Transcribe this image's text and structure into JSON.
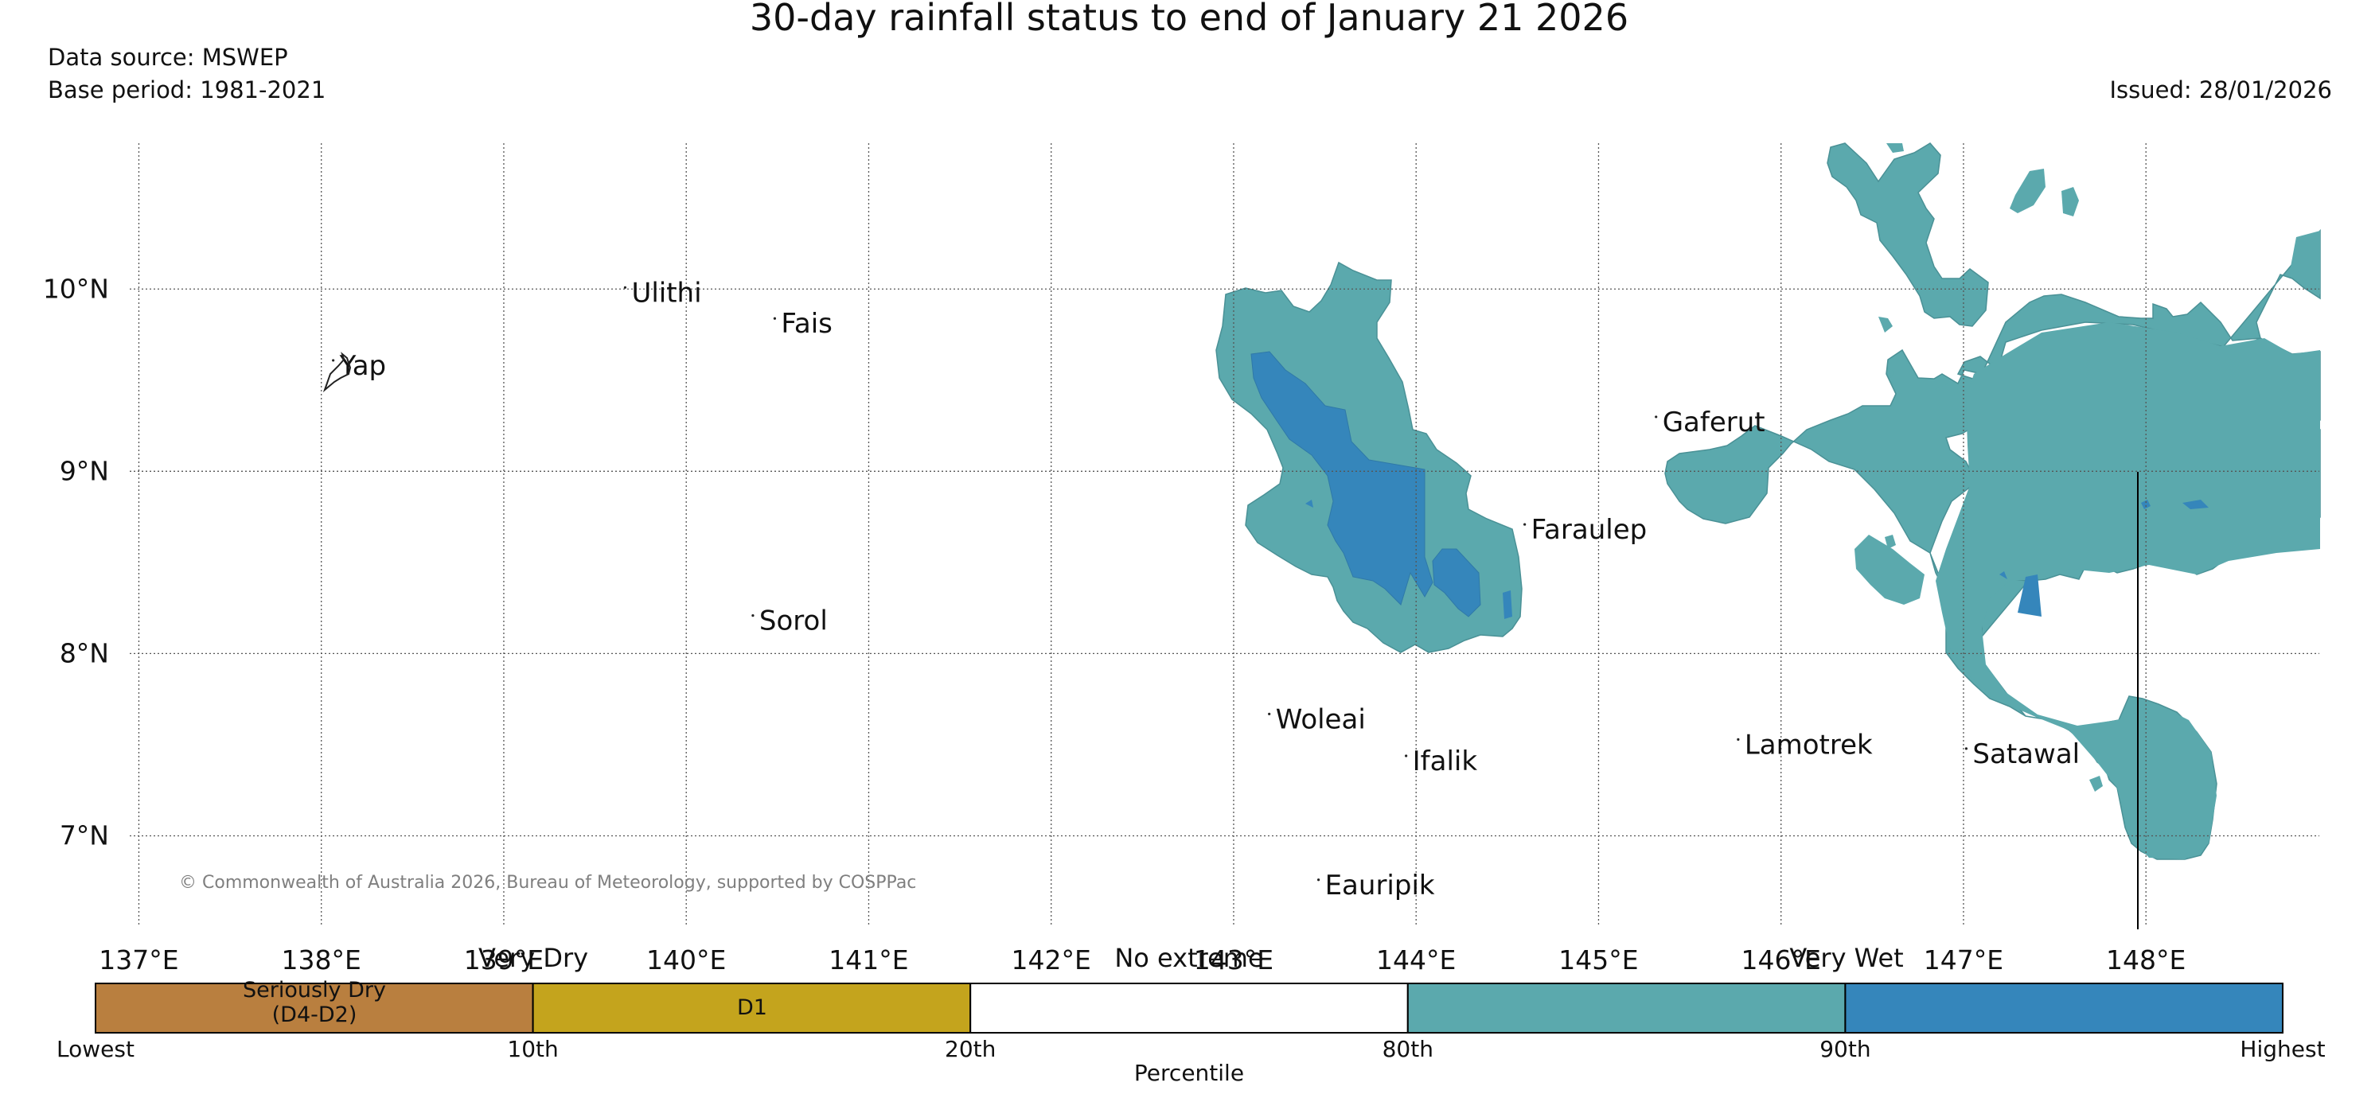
{
  "title": "30-day rainfall status to end of January 21 2026",
  "data_source": "Data source: MSWEP",
  "base_period": "Base period: 1981-2021",
  "issued": "Issued: 28/01/2026",
  "copyright": "© Commonwealth of Australia 2026, Bureau of Meteorology, supported by COSPPac",
  "map": {
    "lon_range": [
      136.95,
      148.95
    ],
    "lat_range": [
      6.5,
      10.8
    ],
    "lon_ticks": [
      {
        "value": 137,
        "label": "137°E"
      },
      {
        "value": 138,
        "label": "138°E"
      },
      {
        "value": 139,
        "label": "139°E"
      },
      {
        "value": 140,
        "label": "140°E"
      },
      {
        "value": 141,
        "label": "141°E"
      },
      {
        "value": 142,
        "label": "142°E"
      },
      {
        "value": 143,
        "label": "143°E"
      },
      {
        "value": 144,
        "label": "144°E"
      },
      {
        "value": 145,
        "label": "145°E"
      },
      {
        "value": 146,
        "label": "146°E"
      },
      {
        "value": 147,
        "label": "147°E"
      },
      {
        "value": 148,
        "label": "148°E"
      }
    ],
    "lat_ticks": [
      {
        "value": 10,
        "label": "10°N"
      },
      {
        "value": 9,
        "label": "9°N"
      },
      {
        "value": 8,
        "label": "8°N"
      },
      {
        "value": 7,
        "label": "7°N"
      }
    ],
    "islands": [
      {
        "name": "Yap",
        "lon": 138.1,
        "lat": 9.53
      },
      {
        "name": "Ulithi",
        "lon": 139.7,
        "lat": 9.93
      },
      {
        "name": "Fais",
        "lon": 140.52,
        "lat": 9.76
      },
      {
        "name": "Sorol",
        "lon": 140.4,
        "lat": 8.13
      },
      {
        "name": "Gaferut",
        "lon": 145.35,
        "lat": 9.22
      },
      {
        "name": "Faraulep",
        "lon": 144.63,
        "lat": 8.63
      },
      {
        "name": "Woleai",
        "lon": 143.23,
        "lat": 7.59
      },
      {
        "name": "Ifalik",
        "lon": 143.98,
        "lat": 7.36
      },
      {
        "name": "Lamotrek",
        "lon": 145.8,
        "lat": 7.45
      },
      {
        "name": "Satawal",
        "lon": 147.05,
        "lat": 7.4
      },
      {
        "name": "Eauripik",
        "lon": 143.5,
        "lat": 6.68
      }
    ]
  },
  "legend": {
    "categories": [
      {
        "name": "Seriously Dry (D4-D2)",
        "color": "#b97f3f"
      },
      {
        "name": "D1",
        "color": "#c4a41d"
      },
      {
        "name": "No extreme",
        "color": "#ffffff"
      },
      {
        "name": "Very Wet (80th-90th)",
        "color": "#5ba9ad"
      },
      {
        "name": "Very Wet (90th+)",
        "color": "#3586bb"
      }
    ],
    "seriously_dry_line1": "Seriously Dry",
    "seriously_dry_line2": "(D4-D2)",
    "d1": "D1",
    "header_very_dry": "Very Dry",
    "header_no_extreme": "No extreme",
    "header_very_wet": "Very Wet",
    "ticks": [
      "Lowest",
      "10th",
      "20th",
      "80th",
      "90th",
      "Highest"
    ],
    "xlabel": "Percentile"
  }
}
